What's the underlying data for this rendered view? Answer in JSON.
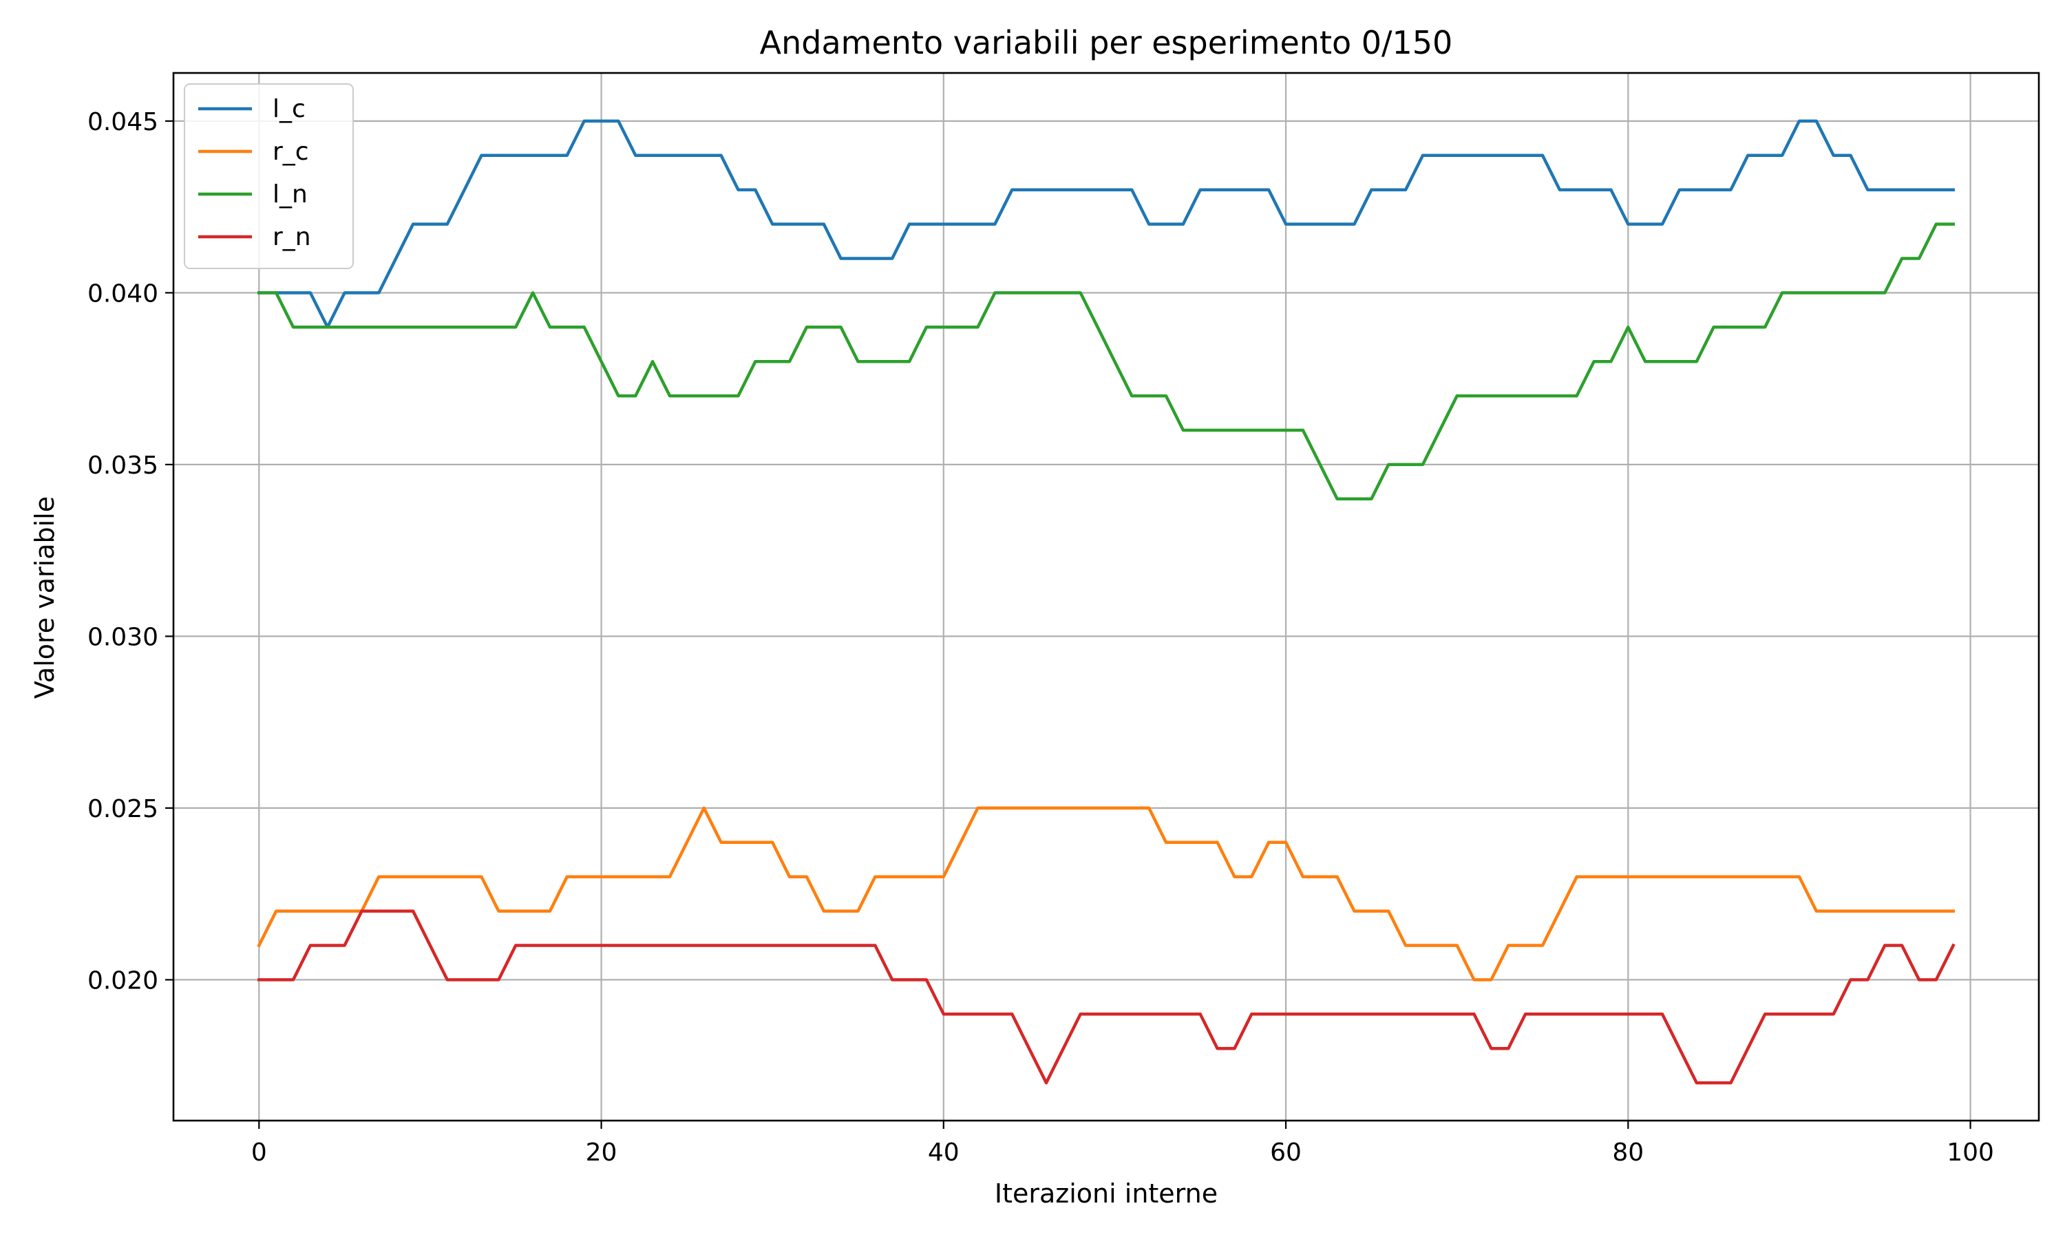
{
  "chart_data": {
    "type": "line",
    "title": "Andamento variabili per esperimento 0/150",
    "xlabel": "Iterazioni interne",
    "ylabel": "Valore variabile",
    "xlim": [
      -5,
      104
    ],
    "ylim": [
      0.0159,
      0.0464
    ],
    "xticks": [
      0,
      20,
      40,
      60,
      80,
      100
    ],
    "xtick_labels": [
      "0",
      "20",
      "40",
      "60",
      "80",
      "100"
    ],
    "yticks": [
      0.02,
      0.025,
      0.03,
      0.035,
      0.04,
      0.045
    ],
    "ytick_labels": [
      "0.020",
      "0.025",
      "0.030",
      "0.035",
      "0.040",
      "0.045"
    ],
    "grid": true,
    "legend_position": "top-left",
    "series": [
      {
        "name": "l_c",
        "color": "#1f77b4",
        "values": [
          0.04,
          0.04,
          0.04,
          0.04,
          0.039,
          0.04,
          0.04,
          0.04,
          0.041,
          0.042,
          0.042,
          0.042,
          0.043,
          0.044,
          0.044,
          0.044,
          0.044,
          0.044,
          0.044,
          0.045,
          0.045,
          0.045,
          0.044,
          0.044,
          0.044,
          0.044,
          0.044,
          0.044,
          0.043,
          0.043,
          0.042,
          0.042,
          0.042,
          0.042,
          0.041,
          0.041,
          0.041,
          0.041,
          0.042,
          0.042,
          0.042,
          0.042,
          0.042,
          0.042,
          0.043,
          0.043,
          0.043,
          0.043,
          0.043,
          0.043,
          0.043,
          0.043,
          0.042,
          0.042,
          0.042,
          0.043,
          0.043,
          0.043,
          0.043,
          0.043,
          0.042,
          0.042,
          0.042,
          0.042,
          0.042,
          0.043,
          0.043,
          0.043,
          0.044,
          0.044,
          0.044,
          0.044,
          0.044,
          0.044,
          0.044,
          0.044,
          0.043,
          0.043,
          0.043,
          0.043,
          0.042,
          0.042,
          0.042,
          0.043,
          0.043,
          0.043,
          0.043,
          0.044,
          0.044,
          0.044,
          0.045,
          0.045,
          0.044,
          0.044,
          0.043,
          0.043,
          0.043,
          0.043,
          0.043,
          0.043
        ]
      },
      {
        "name": "r_c",
        "color": "#ff7f0e",
        "values": [
          0.021,
          0.022,
          0.022,
          0.022,
          0.022,
          0.022,
          0.022,
          0.023,
          0.023,
          0.023,
          0.023,
          0.023,
          0.023,
          0.023,
          0.022,
          0.022,
          0.022,
          0.022,
          0.023,
          0.023,
          0.023,
          0.023,
          0.023,
          0.023,
          0.023,
          0.024,
          0.025,
          0.024,
          0.024,
          0.024,
          0.024,
          0.023,
          0.023,
          0.022,
          0.022,
          0.022,
          0.023,
          0.023,
          0.023,
          0.023,
          0.023,
          0.024,
          0.025,
          0.025,
          0.025,
          0.025,
          0.025,
          0.025,
          0.025,
          0.025,
          0.025,
          0.025,
          0.025,
          0.024,
          0.024,
          0.024,
          0.024,
          0.023,
          0.023,
          0.024,
          0.024,
          0.023,
          0.023,
          0.023,
          0.022,
          0.022,
          0.022,
          0.021,
          0.021,
          0.021,
          0.021,
          0.02,
          0.02,
          0.021,
          0.021,
          0.021,
          0.022,
          0.023,
          0.023,
          0.023,
          0.023,
          0.023,
          0.023,
          0.023,
          0.023,
          0.023,
          0.023,
          0.023,
          0.023,
          0.023,
          0.023,
          0.022,
          0.022,
          0.022,
          0.022,
          0.022,
          0.022,
          0.022,
          0.022,
          0.022
        ]
      },
      {
        "name": "l_n",
        "color": "#2ca02c",
        "values": [
          0.04,
          0.04,
          0.039,
          0.039,
          0.039,
          0.039,
          0.039,
          0.039,
          0.039,
          0.039,
          0.039,
          0.039,
          0.039,
          0.039,
          0.039,
          0.039,
          0.04,
          0.039,
          0.039,
          0.039,
          0.038,
          0.037,
          0.037,
          0.038,
          0.037,
          0.037,
          0.037,
          0.037,
          0.037,
          0.038,
          0.038,
          0.038,
          0.039,
          0.039,
          0.039,
          0.038,
          0.038,
          0.038,
          0.038,
          0.039,
          0.039,
          0.039,
          0.039,
          0.04,
          0.04,
          0.04,
          0.04,
          0.04,
          0.04,
          0.039,
          0.038,
          0.037,
          0.037,
          0.037,
          0.036,
          0.036,
          0.036,
          0.036,
          0.036,
          0.036,
          0.036,
          0.036,
          0.035,
          0.034,
          0.034,
          0.034,
          0.035,
          0.035,
          0.035,
          0.036,
          0.037,
          0.037,
          0.037,
          0.037,
          0.037,
          0.037,
          0.037,
          0.037,
          0.038,
          0.038,
          0.039,
          0.038,
          0.038,
          0.038,
          0.038,
          0.039,
          0.039,
          0.039,
          0.039,
          0.04,
          0.04,
          0.04,
          0.04,
          0.04,
          0.04,
          0.04,
          0.041,
          0.041,
          0.042,
          0.042
        ]
      },
      {
        "name": "r_n",
        "color": "#d62728",
        "values": [
          0.02,
          0.02,
          0.02,
          0.021,
          0.021,
          0.021,
          0.022,
          0.022,
          0.022,
          0.022,
          0.021,
          0.02,
          0.02,
          0.02,
          0.02,
          0.021,
          0.021,
          0.021,
          0.021,
          0.021,
          0.021,
          0.021,
          0.021,
          0.021,
          0.021,
          0.021,
          0.021,
          0.021,
          0.021,
          0.021,
          0.021,
          0.021,
          0.021,
          0.021,
          0.021,
          0.021,
          0.021,
          0.02,
          0.02,
          0.02,
          0.019,
          0.019,
          0.019,
          0.019,
          0.019,
          0.018,
          0.017,
          0.018,
          0.019,
          0.019,
          0.019,
          0.019,
          0.019,
          0.019,
          0.019,
          0.019,
          0.018,
          0.018,
          0.019,
          0.019,
          0.019,
          0.019,
          0.019,
          0.019,
          0.019,
          0.019,
          0.019,
          0.019,
          0.019,
          0.019,
          0.019,
          0.019,
          0.018,
          0.018,
          0.019,
          0.019,
          0.019,
          0.019,
          0.019,
          0.019,
          0.019,
          0.019,
          0.019,
          0.018,
          0.017,
          0.017,
          0.017,
          0.018,
          0.019,
          0.019,
          0.019,
          0.019,
          0.019,
          0.02,
          0.02,
          0.021,
          0.021,
          0.02,
          0.02,
          0.021
        ]
      }
    ]
  }
}
